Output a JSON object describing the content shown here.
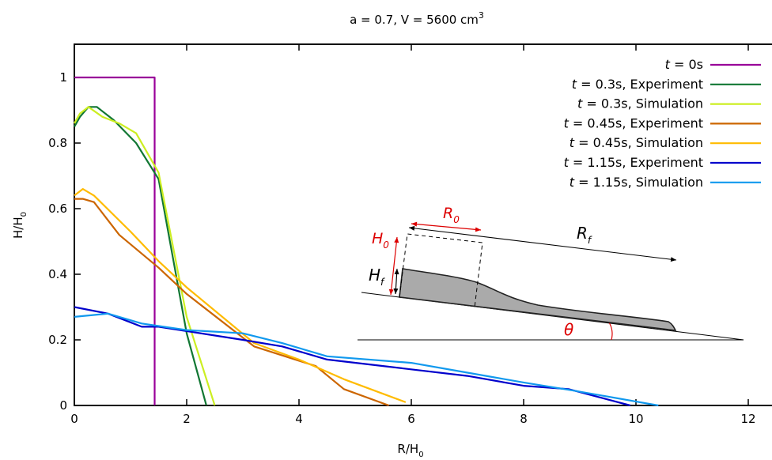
{
  "chart_data": {
    "type": "line",
    "title_base": "a = 0.7,  V = 5600 cm",
    "title_sup": "3",
    "xlabel_base": "R/H",
    "xlabel_sub": "0",
    "ylabel_base": "H/H",
    "ylabel_sub": "0",
    "xlim": [
      0,
      12.5
    ],
    "ylim": [
      0,
      1.1
    ],
    "xticks": [
      0,
      2,
      4,
      6,
      8,
      10,
      12
    ],
    "yticks": [
      0,
      0.2,
      0.4,
      0.6,
      0.8,
      1
    ],
    "xtick_labels": [
      "0",
      "2",
      "4",
      "6",
      "8",
      "10",
      "12"
    ],
    "ytick_labels": [
      "0",
      "0.2",
      "0.4",
      "0.6",
      "0.8",
      "1"
    ],
    "legend_position": "top-right",
    "series": [
      {
        "t_label": "t",
        "rest_label": " = 0s",
        "color": "#990099",
        "x": [
          0,
          1.43,
          1.43
        ],
        "y": [
          1.0,
          1.0,
          0
        ]
      },
      {
        "t_label": "t",
        "rest_label": " = 0.3s, Experiment",
        "color": "#117733",
        "x": [
          0,
          0.1,
          0.25,
          0.4,
          0.7,
          1.1,
          1.5,
          2.0,
          2.35
        ],
        "y": [
          0.85,
          0.88,
          0.91,
          0.91,
          0.87,
          0.8,
          0.69,
          0.22,
          0
        ]
      },
      {
        "t_label": "t",
        "rest_label": " = 0.3s, Simulation",
        "color": "#ccee22",
        "x": [
          0,
          0.1,
          0.25,
          0.5,
          0.8,
          1.1,
          1.5,
          2.0,
          2.5
        ],
        "y": [
          0.86,
          0.89,
          0.91,
          0.88,
          0.86,
          0.83,
          0.71,
          0.27,
          0
        ]
      },
      {
        "t_label": "t",
        "rest_label": " = 0.45s, Experiment",
        "color": "#cc6600",
        "x": [
          0,
          0.15,
          0.35,
          0.8,
          1.5,
          2.0,
          3.2,
          4.3,
          4.8,
          5.6
        ],
        "y": [
          0.63,
          0.63,
          0.62,
          0.52,
          0.42,
          0.34,
          0.18,
          0.12,
          0.05,
          0
        ]
      },
      {
        "t_label": "t",
        "rest_label": " = 0.45s, Simulation",
        "color": "#ffbb00",
        "x": [
          0,
          0.15,
          0.35,
          1.0,
          1.5,
          2.0,
          3.2,
          4.0,
          4.8,
          5.9
        ],
        "y": [
          0.64,
          0.66,
          0.64,
          0.53,
          0.44,
          0.36,
          0.19,
          0.14,
          0.08,
          0.01
        ]
      },
      {
        "t_label": "t",
        "rest_label": " = 1.15s, Experiment",
        "color": "#0000cc",
        "x": [
          0,
          0.6,
          1.2,
          1.5,
          3.0,
          3.7,
          4.5,
          7.0,
          8.0,
          8.8,
          9.9
        ],
        "y": [
          0.3,
          0.28,
          0.24,
          0.24,
          0.2,
          0.18,
          0.14,
          0.09,
          0.06,
          0.05,
          0
        ]
      },
      {
        "t_label": "t",
        "rest_label": " = 1.15s, Simulation",
        "color": "#1199ee",
        "x": [
          0,
          0.6,
          1.2,
          2.0,
          3.0,
          3.7,
          4.5,
          6.0,
          7.0,
          8.0,
          8.9,
          10.4
        ],
        "y": [
          0.27,
          0.28,
          0.25,
          0.23,
          0.22,
          0.19,
          0.15,
          0.13,
          0.1,
          0.07,
          0.045,
          0
        ]
      }
    ],
    "inset": {
      "r0_base": "R",
      "r0_sub": "0",
      "h0_base": "H",
      "h0_sub": "0",
      "hf_base": "H",
      "hf_sub": "f",
      "rf_base": "R",
      "rf_sub": "f",
      "theta": "θ",
      "label_color": "#dd0000"
    }
  }
}
